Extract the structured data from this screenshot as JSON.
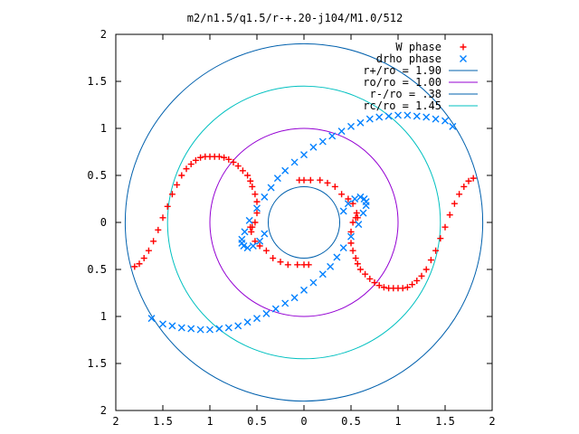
{
  "chart_data": {
    "type": "scatter",
    "title": "m2/n1.5/q1.5/r-+.20-j104/M1.0/512",
    "xlabel": "",
    "ylabel": "",
    "xlim": [
      -2,
      2
    ],
    "ylim": [
      -2,
      2
    ],
    "x_tick_labels": [
      "2",
      "1.5",
      "1",
      "0.5",
      "0",
      "0.5",
      "1",
      "1.5",
      "2"
    ],
    "y_tick_labels": [
      "2",
      "1.5",
      "1",
      "0.5",
      "0",
      "0.5",
      "1",
      "1.5",
      "2"
    ],
    "grid": false,
    "legend_position": "top-right",
    "series": [
      {
        "name": "W phase",
        "marker": "plus",
        "color": "#ff0000",
        "x": [
          1.8,
          1.75,
          1.7,
          1.65,
          1.6,
          1.55,
          1.5,
          1.45,
          1.4,
          1.35,
          1.3,
          1.25,
          1.2,
          1.15,
          1.1,
          1.05,
          1.0,
          0.95,
          0.9,
          0.85,
          0.8,
          0.75,
          0.7,
          0.65,
          0.6,
          0.57,
          0.55,
          0.52,
          0.5,
          0.5,
          0.52,
          0.55,
          0.57,
          0.56,
          0.52,
          0.47,
          0.4,
          0.33,
          0.25,
          0.17,
          0.07,
          0.0,
          -0.05,
          -1.8,
          -1.75,
          -1.7,
          -1.65,
          -1.6,
          -1.55,
          -1.5,
          -1.45,
          -1.4,
          -1.35,
          -1.3,
          -1.25,
          -1.2,
          -1.15,
          -1.1,
          -1.05,
          -1.0,
          -0.95,
          -0.9,
          -0.85,
          -0.8,
          -0.75,
          -0.7,
          -0.65,
          -0.6,
          -0.57,
          -0.55,
          -0.52,
          -0.5,
          -0.5,
          -0.52,
          -0.55,
          -0.57,
          -0.56,
          -0.52,
          -0.47,
          -0.4,
          -0.33,
          -0.25,
          -0.17,
          -0.07,
          0.0,
          0.05
        ],
        "y": [
          0.47,
          0.44,
          0.38,
          0.3,
          0.2,
          0.08,
          -0.05,
          -0.17,
          -0.3,
          -0.4,
          -0.5,
          -0.57,
          -0.62,
          -0.66,
          -0.69,
          -0.7,
          -0.7,
          -0.7,
          -0.7,
          -0.69,
          -0.67,
          -0.64,
          -0.6,
          -0.55,
          -0.5,
          -0.44,
          -0.38,
          -0.3,
          -0.22,
          -0.1,
          0.0,
          0.05,
          0.05,
          0.1,
          0.2,
          0.25,
          0.3,
          0.38,
          0.42,
          0.45,
          0.45,
          0.45,
          0.45,
          -0.47,
          -0.44,
          -0.38,
          -0.3,
          -0.2,
          -0.08,
          0.05,
          0.17,
          0.3,
          0.4,
          0.5,
          0.57,
          0.62,
          0.66,
          0.69,
          0.7,
          0.7,
          0.7,
          0.7,
          0.69,
          0.67,
          0.64,
          0.6,
          0.55,
          0.5,
          0.44,
          0.38,
          0.3,
          0.22,
          0.1,
          0.0,
          -0.05,
          -0.05,
          -0.1,
          -0.2,
          -0.25,
          -0.3,
          -0.38,
          -0.42,
          -0.45,
          -0.45,
          -0.45,
          -0.45
        ]
      },
      {
        "name": "drho phase",
        "marker": "x",
        "color": "#0080ff",
        "x": [
          1.58,
          1.5,
          1.4,
          1.3,
          1.2,
          1.1,
          1.0,
          0.9,
          0.8,
          0.7,
          0.6,
          0.5,
          0.4,
          0.3,
          0.2,
          0.1,
          0.0,
          -0.1,
          -0.2,
          -0.28,
          -0.35,
          -0.42,
          -0.5,
          -0.58,
          -0.63,
          -0.66,
          -0.66,
          -0.64,
          -0.6,
          -0.54,
          -0.47,
          -0.42,
          -1.62,
          -1.5,
          -1.4,
          -1.3,
          -1.2,
          -1.1,
          -1.0,
          -0.9,
          -0.8,
          -0.7,
          -0.6,
          -0.5,
          -0.4,
          -0.3,
          -0.2,
          -0.1,
          0.0,
          0.1,
          0.2,
          0.28,
          0.35,
          0.42,
          0.5,
          0.58,
          0.63,
          0.66,
          0.66,
          0.64,
          0.6,
          0.54,
          0.47,
          0.42
        ],
        "y": [
          1.02,
          1.08,
          1.1,
          1.12,
          1.13,
          1.14,
          1.14,
          1.13,
          1.12,
          1.1,
          1.06,
          1.02,
          0.97,
          0.92,
          0.86,
          0.8,
          0.72,
          0.64,
          0.55,
          0.47,
          0.37,
          0.27,
          0.15,
          0.02,
          -0.1,
          -0.18,
          -0.22,
          -0.25,
          -0.27,
          -0.25,
          -0.2,
          -0.12,
          -1.02,
          -1.08,
          -1.1,
          -1.12,
          -1.13,
          -1.14,
          -1.14,
          -1.13,
          -1.12,
          -1.1,
          -1.06,
          -1.02,
          -0.97,
          -0.92,
          -0.86,
          -0.8,
          -0.72,
          -0.64,
          -0.55,
          -0.47,
          -0.37,
          -0.27,
          -0.15,
          -0.02,
          0.1,
          0.18,
          0.22,
          0.25,
          0.27,
          0.25,
          0.2,
          0.12
        ]
      },
      {
        "name": "r+/ro = 1.90",
        "type": "circle",
        "radius": 1.9,
        "color": "#0060ad"
      },
      {
        "name": "ro/ro = 1.00",
        "type": "circle",
        "radius": 1.0,
        "color": "#9400d3"
      },
      {
        "name": "r-/ro = .38",
        "type": "circle",
        "radius": 0.38,
        "color": "#0060ad"
      },
      {
        "name": "rc/ro = 1.45",
        "type": "circle",
        "radius": 1.45,
        "color": "#00c0c0"
      }
    ]
  }
}
